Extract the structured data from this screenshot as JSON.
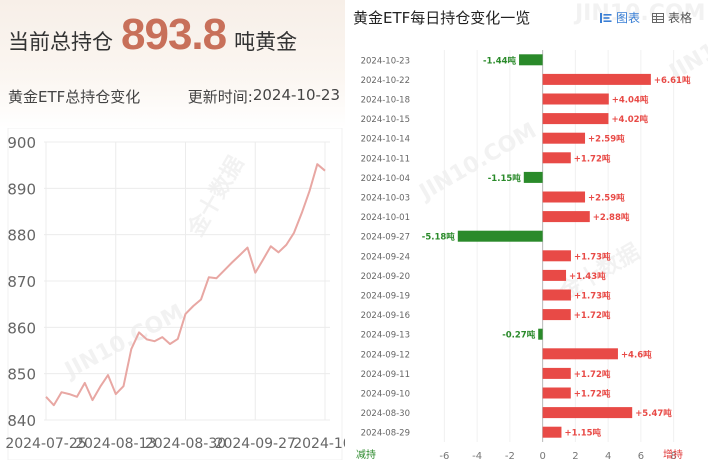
{
  "left_panel": {
    "holding_label": "当前总持仓",
    "holding_value": "893.8",
    "holding_unit": "吨黄金",
    "subtitle": "黄金ETF总持仓变化",
    "update_label": "更新时间:",
    "update_date": "2024-10-23"
  },
  "right_panel": {
    "title": "黄金ETF每日持仓变化一览",
    "view_chart_label": "图表",
    "view_table_label": "表格",
    "decrease_label": "减持",
    "increase_label": "增持"
  },
  "colors": {
    "line": "#e8a7a3",
    "increase": "#e84a46",
    "decrease": "#2a8a2a",
    "header_value": "#c8705a",
    "toggle_active": "#3a7fd5"
  },
  "chart_data": [
    {
      "type": "line",
      "title": "黄金ETF总持仓变化",
      "xlabel": "",
      "ylabel": "",
      "ylim": [
        840,
        900
      ],
      "yticks": [
        840,
        850,
        860,
        870,
        880,
        890,
        900
      ],
      "xtick_labels": [
        "2024-07-25",
        "2024-08-13",
        "2024-08-30",
        "2024-09-27",
        "2024-10-"
      ],
      "grid": true,
      "series": [
        {
          "values": [
            845.0,
            843.2,
            846.0,
            845.6,
            845.0,
            848.0,
            844.3,
            847.2,
            849.7,
            845.6,
            847.3,
            855.3,
            858.9,
            857.4,
            857.0,
            857.9,
            856.4,
            857.5,
            862.9,
            864.6,
            866.0,
            870.8,
            870.6,
            872.3,
            874.0,
            875.6,
            877.2,
            871.8,
            874.6,
            877.5,
            876.2,
            877.8,
            880.4,
            884.7,
            889.4,
            895.2,
            893.8
          ]
        }
      ]
    },
    {
      "type": "bar",
      "orientation": "horizontal",
      "title": "黄金ETF每日持仓变化一览",
      "categories": [
        "2024-10-23",
        "2024-10-22",
        "2024-10-18",
        "2024-10-15",
        "2024-10-14",
        "2024-10-11",
        "2024-10-04",
        "2024-10-03",
        "2024-10-01",
        "2024-09-27",
        "2024-09-24",
        "2024-09-20",
        "2024-09-19",
        "2024-09-16",
        "2024-09-13",
        "2024-09-12",
        "2024-09-11",
        "2024-09-10",
        "2024-08-30",
        "2024-08-29"
      ],
      "values": [
        -1.44,
        6.61,
        4.04,
        4.02,
        2.59,
        1.72,
        -1.15,
        2.59,
        2.88,
        -5.18,
        1.73,
        1.43,
        1.73,
        1.72,
        -0.27,
        4.6,
        1.72,
        1.72,
        5.47,
        1.15
      ],
      "value_labels": [
        "-1.44吨",
        "+6.61吨",
        "+4.04吨",
        "+4.02吨",
        "+2.59吨",
        "+1.72吨",
        "-1.15吨",
        "+2.59吨",
        "+2.88吨",
        "-5.18吨",
        "+1.73吨",
        "+1.43吨",
        "+1.73吨",
        "+1.72吨",
        "-0.27吨",
        "+4.6吨",
        "+1.72吨",
        "+1.72吨",
        "+5.47吨",
        "+1.15吨"
      ],
      "xlim": [
        -7,
        9
      ],
      "xticks": [
        -6,
        -4,
        -2,
        0,
        2,
        4,
        6,
        8
      ],
      "grid": true,
      "unit": "吨"
    }
  ]
}
